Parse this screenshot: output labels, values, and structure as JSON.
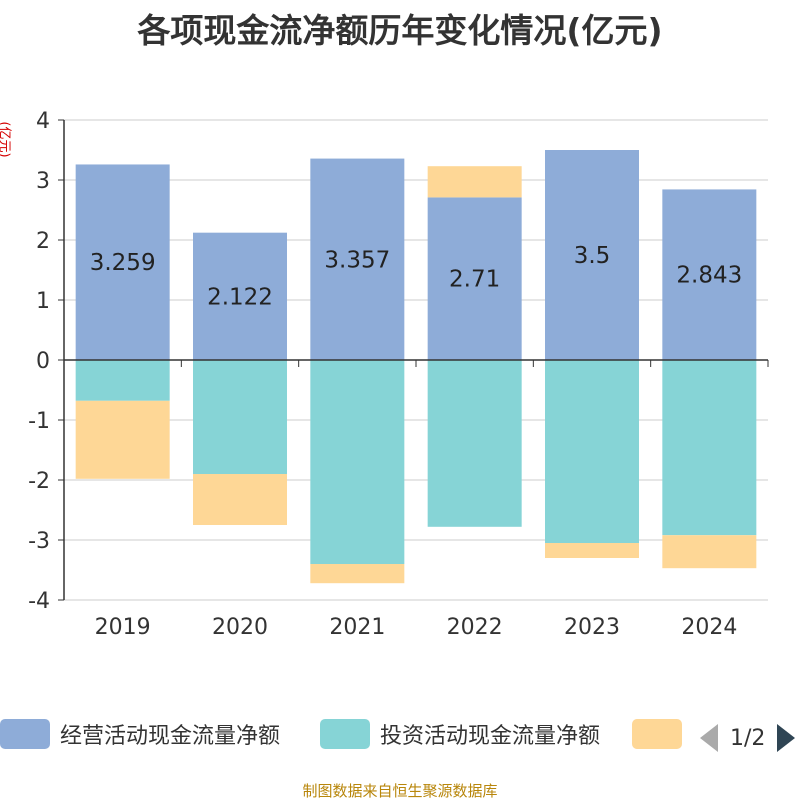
{
  "title": "各项现金流净额历年变化情况(亿元)",
  "unit": "(亿元)",
  "source": "制图数据来自恒生聚源数据库",
  "colors": {
    "operating": "#8eacd8",
    "investing": "#86d4d6",
    "financing": "#fed796",
    "grid": "#cccccc",
    "axis": "#333333"
  },
  "legend": {
    "items": [
      "经营活动现金流量净额",
      "投资活动现金流量净额",
      ""
    ],
    "pager": "1/2"
  },
  "chart_data": {
    "type": "bar",
    "stacked": true,
    "categories": [
      "2019",
      "2020",
      "2021",
      "2022",
      "2023",
      "2024"
    ],
    "series": [
      {
        "name": "经营活动现金流量净额",
        "values": [
          3.259,
          2.122,
          3.357,
          2.71,
          3.5,
          2.843
        ],
        "labels": [
          "3.259",
          "2.122",
          "3.357",
          "2.71",
          "3.5",
          "2.843"
        ]
      },
      {
        "name": "投资活动现金流量净额",
        "values": [
          -0.68,
          -1.9,
          -3.4,
          -2.78,
          -3.05,
          -2.92
        ]
      },
      {
        "values": [
          -1.3,
          -0.85,
          -0.32,
          0.52,
          -0.25,
          -0.55
        ]
      }
    ],
    "ylim": [
      -4,
      4
    ],
    "yticks": [
      "4",
      "3",
      "2",
      "1",
      "0",
      "-1",
      "-2",
      "-3",
      "-4"
    ],
    "grid": true,
    "legend_position": "bottom"
  }
}
